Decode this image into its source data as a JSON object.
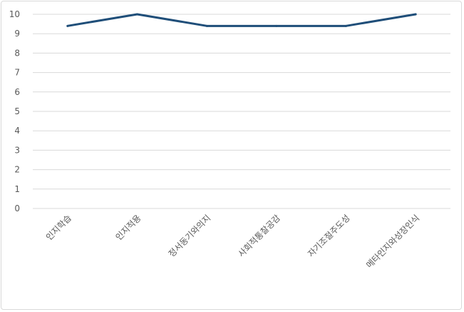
{
  "chart_data": {
    "type": "line",
    "categories": [
      "인지학습",
      "인지적용",
      "정서동기와의지",
      "사회적통찰공감",
      "자기조절주도성",
      "메타인지와성장인식"
    ],
    "series": [
      {
        "values": [
          9.4,
          10,
          9.4,
          9.4,
          9.4,
          10
        ]
      }
    ],
    "yticks": [
      "0",
      "1",
      "2",
      "3",
      "4",
      "5",
      "6",
      "7",
      "8",
      "9",
      "10"
    ],
    "ylim": [
      0,
      10
    ],
    "grid": true,
    "legend": "none",
    "colors": {
      "line": "#1f4e79",
      "grid": "#d9d9d9",
      "text": "#595959"
    }
  }
}
